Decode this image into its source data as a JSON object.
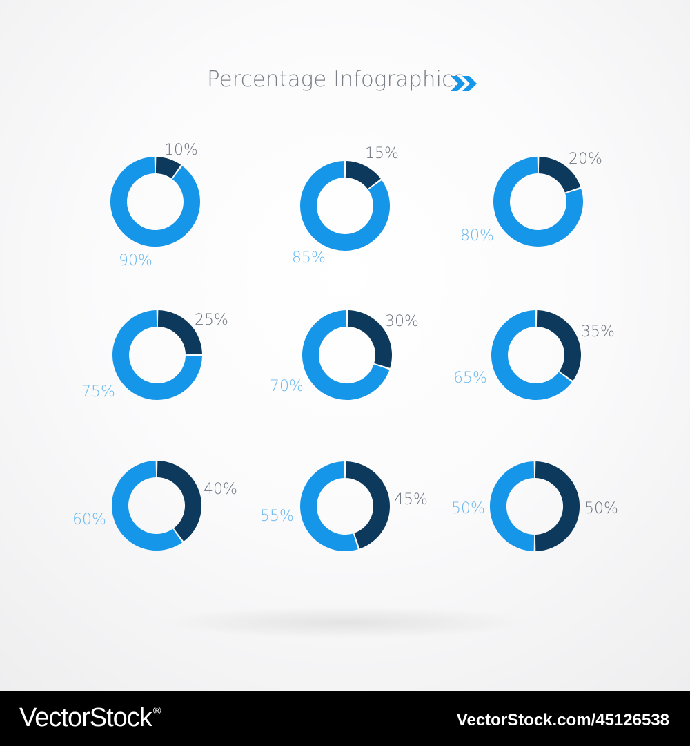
{
  "title": "Percentage Infographics",
  "colors": {
    "primary": "#1696E8",
    "dark": "#0D3A5C",
    "label_dark": "#6E7580",
    "label_light": "#69B8F0",
    "background_center": "#FFFFFF",
    "background_edge": "#EEEEEF",
    "footer_bg": "#000000",
    "footer_text": "#FFFFFF"
  },
  "icons": {
    "title_arrow": "double-chevron-right-icon"
  },
  "chart_data": [
    {
      "type": "pie",
      "labels": [
        "10%",
        "90%"
      ],
      "values": [
        10,
        90
      ]
    },
    {
      "type": "pie",
      "labels": [
        "15%",
        "85%"
      ],
      "values": [
        15,
        85
      ]
    },
    {
      "type": "pie",
      "labels": [
        "20%",
        "80%"
      ],
      "values": [
        20,
        80
      ]
    },
    {
      "type": "pie",
      "labels": [
        "25%",
        "75%"
      ],
      "values": [
        25,
        75
      ]
    },
    {
      "type": "pie",
      "labels": [
        "30%",
        "70%"
      ],
      "values": [
        30,
        70
      ]
    },
    {
      "type": "pie",
      "labels": [
        "35%",
        "65%"
      ],
      "values": [
        35,
        65
      ]
    },
    {
      "type": "pie",
      "labels": [
        "40%",
        "60%"
      ],
      "values": [
        40,
        60
      ]
    },
    {
      "type": "pie",
      "labels": [
        "45%",
        "55%"
      ],
      "values": [
        45,
        55
      ]
    },
    {
      "type": "pie",
      "labels": [
        "50%",
        "50%"
      ],
      "values": [
        50,
        50
      ]
    }
  ],
  "footer": {
    "brand": "VectorStock",
    "trademark": "®",
    "caption": "VectorStock.com/45126538"
  }
}
